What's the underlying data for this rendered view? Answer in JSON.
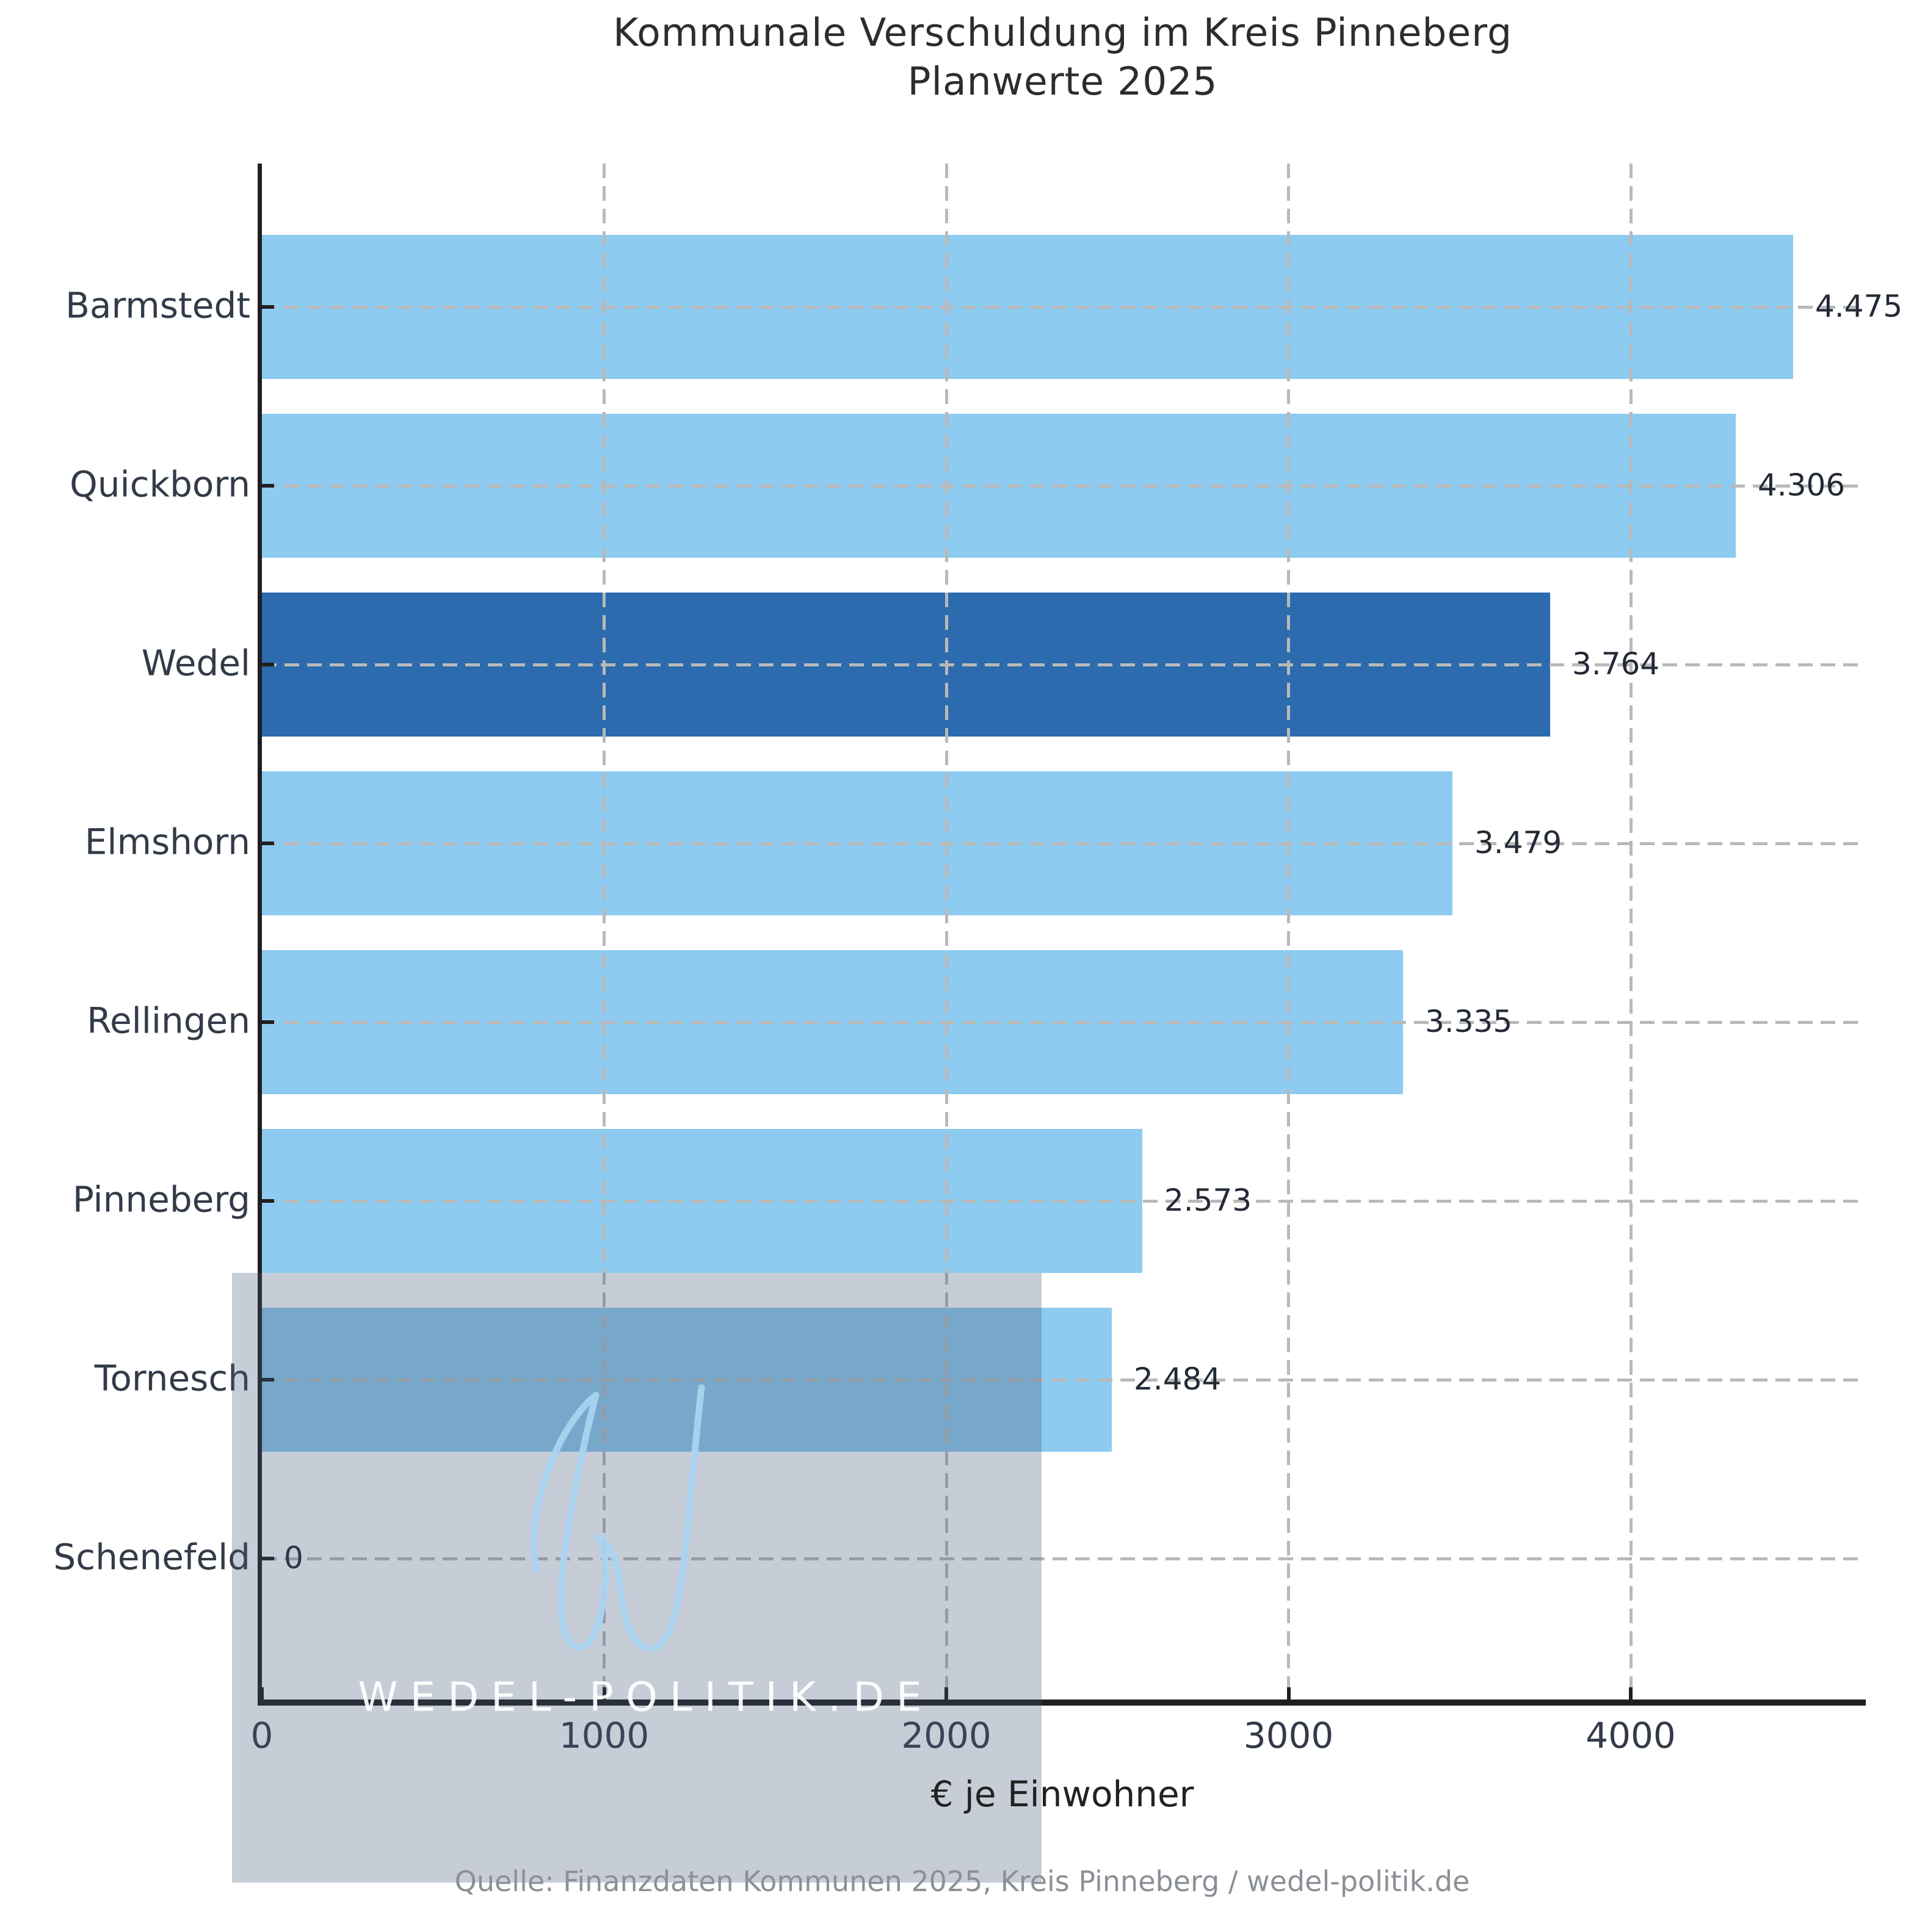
{
  "title": {
    "line1": "Kommunale Verschuldung im Kreis Pinneberg",
    "line2": "Planwerte 2025"
  },
  "watermark": {
    "text": "WEDEL-POLITIK.DE",
    "logo": "script-w-logo"
  },
  "source": "Quelle: Finanzdaten Kommunen 2025, Kreis Pinneberg / wedel-politik.de",
  "chart_data": {
    "type": "bar",
    "orientation": "horizontal",
    "title": "Kommunale Verschuldung im Kreis Pinneberg Planwerte 2025",
    "xlabel": "€ je Einwohner",
    "ylabel": "",
    "categories": [
      "Barmstedt",
      "Quickborn",
      "Wedel",
      "Elmshorn",
      "Rellingen",
      "Pinneberg",
      "Tornesch",
      "Schenefeld"
    ],
    "values": [
      4475,
      4306,
      3764,
      3479,
      3335,
      2573,
      2484,
      0
    ],
    "value_labels": [
      "4.475",
      "4.306",
      "3.764",
      "3.479",
      "3.335",
      "2.573",
      "2.484",
      "0"
    ],
    "highlight_category": "Wedel",
    "x_ticks": [
      0,
      1000,
      2000,
      3000,
      4000
    ],
    "x_tick_labels": [
      "0",
      "1000",
      "2000",
      "3000",
      "4000"
    ],
    "xlim": [
      0,
      4680
    ],
    "grid": true,
    "legend": "none",
    "colors": {
      "bar": "#8dcbf0",
      "bar_highlight": "#2c6bad",
      "grid": "#b9b9b9",
      "axis": "#1f1f1f",
      "tick_label": "#333b49",
      "value_label": "#232a36",
      "title": "#2d2d2d",
      "source": "#8b9097",
      "watermark_box": "rgba(71,91,118,0.30)",
      "watermark_text": "#ffffff",
      "watermark_logo": "#a9d5f2"
    }
  }
}
